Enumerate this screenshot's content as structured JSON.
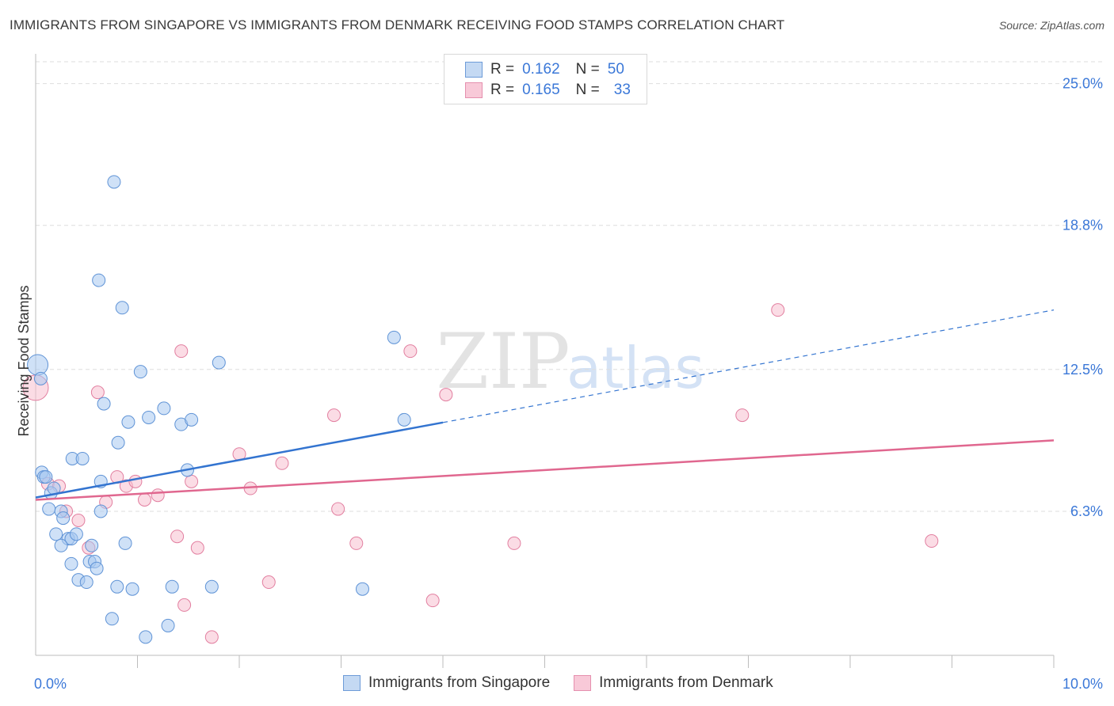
{
  "title": "IMMIGRANTS FROM SINGAPORE VS IMMIGRANTS FROM DENMARK RECEIVING FOOD STAMPS CORRELATION CHART",
  "source": "Source: ZipAtlas.com",
  "watermark": {
    "zip": "ZIP",
    "atlas": "atlas"
  },
  "legend_top": [
    {
      "r_label": "R =",
      "r_value": "0.162",
      "n_label": "N =",
      "n_value": "50"
    },
    {
      "r_label": "R =",
      "r_value": "0.165",
      "n_label": "N =",
      "n_value": "33"
    }
  ],
  "colors": {
    "singapore_fill": "#a8c8f0",
    "singapore_stroke": "#5f93d6",
    "singapore_line": "#3374d0",
    "denmark_fill": "#f7bfd0",
    "denmark_stroke": "#e27fa0",
    "denmark_line": "#e0678f",
    "axis_text": "#3b78d8",
    "grid": "#dddddd"
  },
  "chart_data": {
    "type": "scatter",
    "title": "IMMIGRANTS FROM SINGAPORE VS IMMIGRANTS FROM DENMARK RECEIVING FOOD STAMPS CORRELATION CHART",
    "xlabel": "",
    "ylabel": "Receiving Food Stamps",
    "xlim": [
      0,
      10
    ],
    "ylim": [
      0,
      26.3
    ],
    "x_tick_labels": [
      "0.0%",
      "10.0%"
    ],
    "y_ticks": [
      6.3,
      12.5,
      18.8,
      25.0
    ],
    "y_tick_labels": [
      "6.3%",
      "12.5%",
      "18.8%",
      "25.0%"
    ],
    "grid": true,
    "legend_position": "bottom",
    "series": [
      {
        "name": "Immigrants from Singapore",
        "r": 0.162,
        "n": 50,
        "trend": {
          "x0": 0,
          "y0": 6.9,
          "x1": 10,
          "y1": 15.1,
          "solid_until": 4.0
        },
        "points": [
          [
            0.02,
            12.7
          ],
          [
            0.05,
            12.1
          ],
          [
            0.06,
            8.0
          ],
          [
            0.08,
            7.8
          ],
          [
            0.1,
            7.8
          ],
          [
            0.15,
            7.1
          ],
          [
            0.18,
            7.3
          ],
          [
            0.13,
            6.4
          ],
          [
            0.25,
            6.3
          ],
          [
            0.27,
            6.0
          ],
          [
            0.2,
            5.3
          ],
          [
            0.32,
            5.1
          ],
          [
            0.35,
            5.1
          ],
          [
            0.4,
            5.3
          ],
          [
            0.25,
            4.8
          ],
          [
            0.35,
            4.0
          ],
          [
            0.42,
            3.3
          ],
          [
            0.5,
            3.2
          ],
          [
            0.55,
            4.8
          ],
          [
            0.53,
            4.1
          ],
          [
            0.58,
            4.1
          ],
          [
            0.6,
            3.8
          ],
          [
            0.36,
            8.6
          ],
          [
            0.46,
            8.6
          ],
          [
            0.64,
            6.3
          ],
          [
            0.64,
            7.6
          ],
          [
            0.67,
            11.0
          ],
          [
            0.62,
            16.4
          ],
          [
            0.77,
            20.7
          ],
          [
            0.8,
            3.0
          ],
          [
            0.81,
            9.3
          ],
          [
            0.85,
            15.2
          ],
          [
            0.88,
            4.9
          ],
          [
            0.91,
            10.2
          ],
          [
            0.95,
            2.9
          ],
          [
            1.03,
            12.4
          ],
          [
            1.08,
            0.8
          ],
          [
            1.11,
            10.4
          ],
          [
            1.26,
            10.8
          ],
          [
            1.3,
            1.3
          ],
          [
            1.34,
            3.0
          ],
          [
            1.43,
            10.1
          ],
          [
            1.49,
            8.1
          ],
          [
            1.53,
            10.3
          ],
          [
            1.8,
            12.8
          ],
          [
            0.75,
            1.6
          ],
          [
            1.73,
            3.0
          ],
          [
            3.21,
            2.9
          ],
          [
            3.52,
            13.9
          ],
          [
            3.62,
            10.3
          ]
        ]
      },
      {
        "name": "Immigrants from Denmark",
        "r": 0.165,
        "n": 33,
        "trend": {
          "x0": 0,
          "y0": 6.8,
          "x1": 10,
          "y1": 9.4,
          "solid_until": 10
        },
        "points": [
          [
            0.0,
            11.7
          ],
          [
            0.12,
            7.5
          ],
          [
            0.23,
            7.4
          ],
          [
            0.3,
            6.3
          ],
          [
            0.42,
            5.9
          ],
          [
            0.52,
            4.7
          ],
          [
            0.61,
            11.5
          ],
          [
            0.69,
            6.7
          ],
          [
            0.8,
            7.8
          ],
          [
            0.89,
            7.4
          ],
          [
            0.98,
            7.6
          ],
          [
            1.07,
            6.8
          ],
          [
            1.2,
            7.0
          ],
          [
            1.39,
            5.2
          ],
          [
            1.43,
            13.3
          ],
          [
            1.46,
            2.2
          ],
          [
            1.53,
            7.6
          ],
          [
            1.59,
            4.7
          ],
          [
            1.73,
            0.8
          ],
          [
            2.0,
            8.8
          ],
          [
            2.11,
            7.3
          ],
          [
            2.29,
            3.2
          ],
          [
            2.42,
            8.4
          ],
          [
            2.93,
            10.5
          ],
          [
            2.97,
            6.4
          ],
          [
            3.15,
            4.9
          ],
          [
            3.68,
            13.3
          ],
          [
            3.9,
            2.4
          ],
          [
            4.03,
            11.4
          ],
          [
            4.7,
            4.9
          ],
          [
            6.94,
            10.5
          ],
          [
            7.29,
            15.1
          ],
          [
            8.8,
            5.0
          ]
        ]
      }
    ]
  }
}
